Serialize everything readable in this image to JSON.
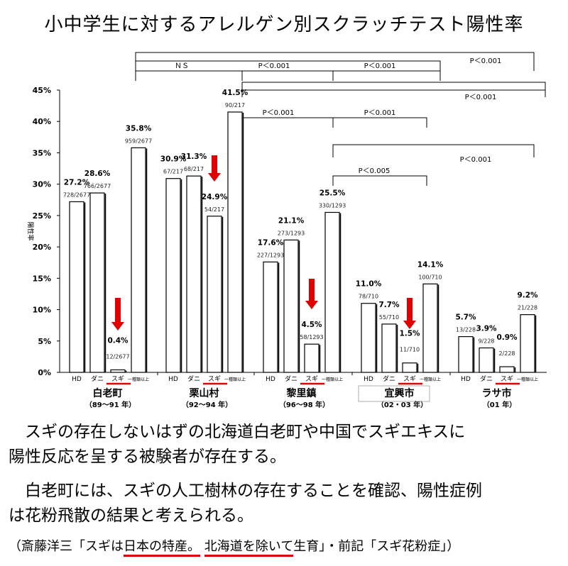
{
  "chart_data": {
    "type": "bar",
    "title": "小中学生に対するアレルゲン別スクラッチテスト陽性率",
    "ylabel": "陽性率",
    "ylim": [
      0,
      45
    ],
    "yticks": [
      "0%",
      "5%",
      "10%",
      "15%",
      "20%",
      "25%",
      "30%",
      "35%",
      "40%",
      "45%"
    ],
    "grid": false,
    "bar_categories": [
      "HD",
      "ダニ",
      "スギ",
      "一種類以上"
    ],
    "groups": [
      {
        "name": "白老町",
        "period": "（89〜91 年）",
        "values": [
          27.2,
          28.6,
          0.4,
          35.8
        ],
        "pct_labels": [
          "27.2%",
          "28.6%",
          "0.4%",
          "35.8%"
        ],
        "counts": [
          "728/2677",
          "766/2677",
          "12/2677",
          "959/2677"
        ]
      },
      {
        "name": "栗山村",
        "period": "（92〜94 年）",
        "values": [
          30.9,
          31.3,
          24.9,
          41.5
        ],
        "pct_labels": [
          "30.9%",
          "31.3%",
          "24.9%",
          "41.5%"
        ],
        "counts": [
          "67/217",
          "68/217",
          "54/217",
          "90/217"
        ]
      },
      {
        "name": "黎里鎮",
        "period": "（96〜98 年）",
        "values": [
          17.6,
          21.1,
          4.5,
          25.5
        ],
        "pct_labels": [
          "17.6%",
          "21.1%",
          "4.5%",
          "25.5%"
        ],
        "counts": [
          "227/1293",
          "273/1293",
          "58/1293",
          "330/1293"
        ]
      },
      {
        "name": "宜興市",
        "period": "（02・03 年）",
        "values": [
          11.0,
          7.7,
          1.5,
          14.1
        ],
        "pct_labels": [
          "11.0%",
          "7.7%",
          "1.5%",
          "14.1%"
        ],
        "counts": [
          "78/710",
          "55/710",
          "11/710",
          "100/710"
        ]
      },
      {
        "name": "ラサ市",
        "period": "（01 年）",
        "values": [
          5.7,
          3.9,
          0.9,
          9.2
        ],
        "pct_labels": [
          "5.7%",
          "3.9%",
          "0.9%",
          "9.2%"
        ],
        "counts": [
          "13/228",
          "9/228",
          "2/228",
          "21/228"
        ]
      }
    ],
    "annotations": {
      "ns": "ＮＳ",
      "p001": "P＜0.001",
      "p005": "P＜0.005"
    },
    "arrow_color": "#e00000"
  },
  "text": {
    "p1a": "　スギの存在しないはずの北海道白老町や中国でスギエキスに",
    "p1b": "陽性反応を呈する被験者が存在する。",
    "p2a": "　白老町には、スギの人工樹林の存在することを確認、陽性症例",
    "p2b": "は花粉飛散の結果と考えられる。",
    "cite_1": "（斎藤洋三「スギは",
    "cite_2": "日本の特産。",
    "cite_3": "北海道を除いて",
    "cite_4": "生育」・前記「スギ花粉症」）"
  }
}
